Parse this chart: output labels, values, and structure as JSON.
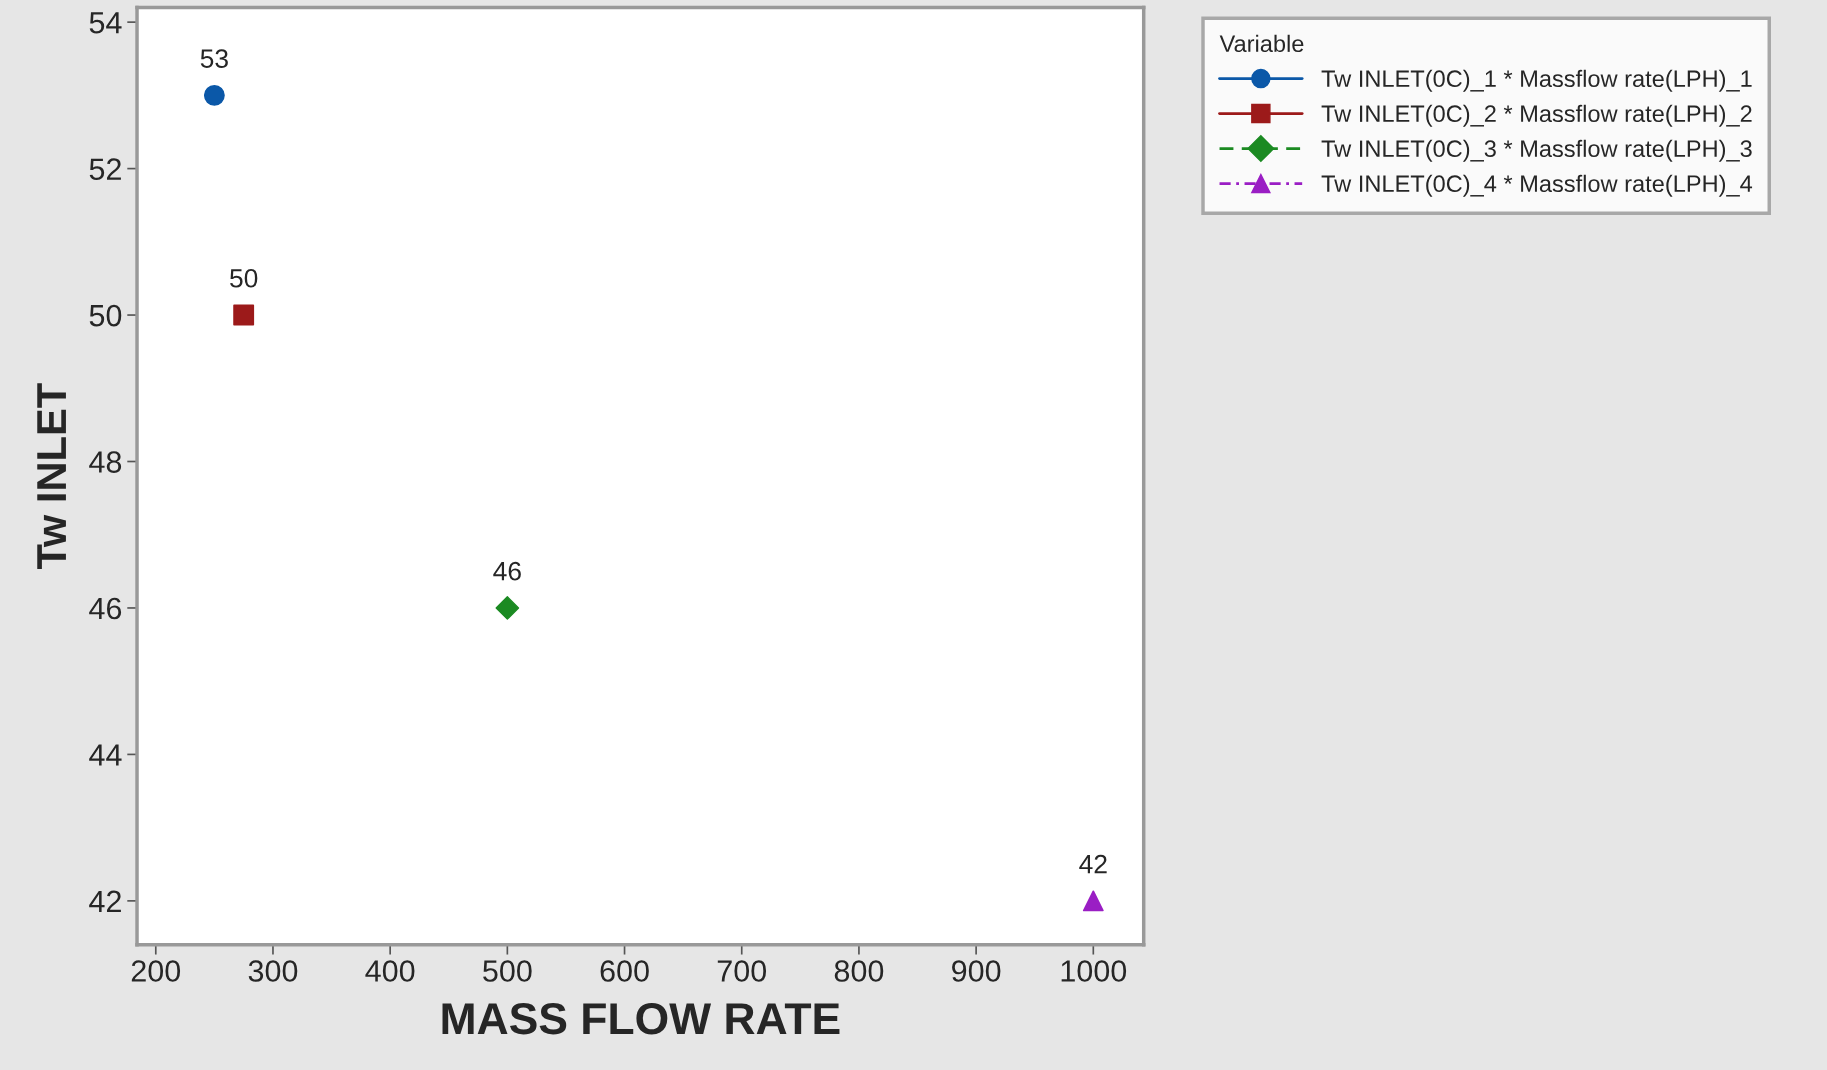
{
  "chart_data": {
    "type": "scatter",
    "xlabel": "MASS FLOW RATE",
    "ylabel": "Tw INLET",
    "legend_title": "Variable",
    "legend": "top right",
    "grid": false,
    "data_labels": true,
    "xlim": [
      184,
      1043
    ],
    "ylim": [
      41.4,
      54.2
    ],
    "xticks": [
      200,
      300,
      400,
      500,
      600,
      700,
      800,
      900,
      1000
    ],
    "yticks": [
      42,
      44,
      46,
      48,
      50,
      52,
      54
    ],
    "series": [
      {
        "name": "Tw INLET(0C)_1 * Massflow rate(LPH)_1",
        "color": "#0b58a8",
        "marker": "circle",
        "line_style": "solid",
        "x": [
          250
        ],
        "values": [
          53
        ]
      },
      {
        "name": "Tw INLET(0C)_2 * Massflow rate(LPH)_2",
        "color": "#9c1a1a",
        "marker": "square",
        "line_style": "solid",
        "x": [
          275
        ],
        "values": [
          50
        ]
      },
      {
        "name": "Tw INLET(0C)_3 * Massflow rate(LPH)_3",
        "color": "#1b8a22",
        "marker": "diamond",
        "line_style": "dashed",
        "x": [
          500
        ],
        "values": [
          46
        ]
      },
      {
        "name": "Tw INLET(0C)_4 * Massflow rate(LPH)_4",
        "color": "#9a1ec4",
        "marker": "triangle",
        "line_style": "dashdot",
        "x": [
          1000
        ],
        "values": [
          42
        ]
      }
    ]
  }
}
